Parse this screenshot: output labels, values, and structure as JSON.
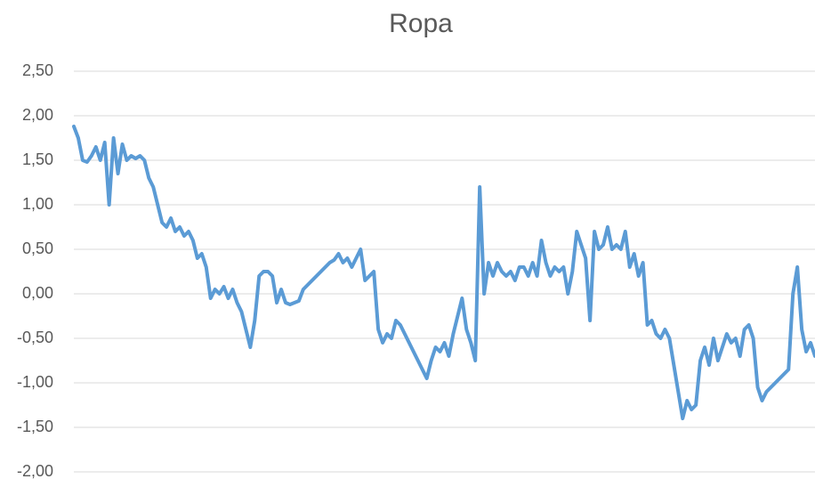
{
  "chart_data": {
    "type": "line",
    "title": "Ropa",
    "series": [
      {
        "color": "#5b9bd5",
        "values": [
          1.88,
          1.75,
          1.5,
          1.48,
          1.55,
          1.65,
          1.5,
          1.7,
          1.0,
          1.75,
          1.35,
          1.68,
          1.5,
          1.55,
          1.52,
          1.55,
          1.5,
          1.3,
          1.2,
          1.0,
          0.8,
          0.75,
          0.85,
          0.7,
          0.75,
          0.65,
          0.7,
          0.6,
          0.4,
          0.45,
          0.3,
          -0.05,
          0.05,
          0.0,
          0.08,
          -0.05,
          0.05,
          -0.1,
          -0.2,
          -0.4,
          -0.6,
          -0.3,
          0.2,
          0.25,
          0.25,
          0.2,
          -0.1,
          0.05,
          -0.1,
          -0.12,
          -0.1,
          -0.08,
          0.05,
          0.1,
          0.15,
          0.2,
          0.25,
          0.3,
          0.35,
          0.38,
          0.45,
          0.35,
          0.4,
          0.3,
          0.4,
          0.5,
          0.15,
          0.2,
          0.25,
          -0.4,
          -0.55,
          -0.45,
          -0.5,
          -0.3,
          -0.35,
          -0.45,
          -0.55,
          -0.65,
          -0.75,
          -0.85,
          -0.95,
          -0.75,
          -0.6,
          -0.65,
          -0.55,
          -0.7,
          -0.45,
          -0.25,
          -0.05,
          -0.4,
          -0.55,
          -0.75,
          1.2,
          0.0,
          0.35,
          0.2,
          0.35,
          0.25,
          0.2,
          0.25,
          0.15,
          0.3,
          0.3,
          0.2,
          0.35,
          0.2,
          0.6,
          0.35,
          0.2,
          0.3,
          0.25,
          0.3,
          0.0,
          0.25,
          0.7,
          0.55,
          0.4,
          -0.3,
          0.7,
          0.5,
          0.55,
          0.75,
          0.5,
          0.55,
          0.5,
          0.7,
          0.3,
          0.45,
          0.2,
          0.35,
          -0.35,
          -0.3,
          -0.45,
          -0.5,
          -0.4,
          -0.5,
          -0.8,
          -1.1,
          -1.4,
          -1.2,
          -1.3,
          -1.25,
          -0.75,
          -0.6,
          -0.8,
          -0.5,
          -0.75,
          -0.6,
          -0.45,
          -0.55,
          -0.5,
          -0.7,
          -0.4,
          -0.35,
          -0.5,
          -1.05,
          -1.2,
          -1.1,
          -1.05,
          -1.0,
          -0.95,
          -0.9,
          -0.85,
          0.0,
          0.3,
          -0.4,
          -0.65,
          -0.55,
          -0.7
        ]
      }
    ],
    "ylim": [
      -2,
      2.5
    ],
    "yticks": [
      {
        "value": -2,
        "label": "-2,00"
      },
      {
        "value": -1.5,
        "label": "-1,50"
      },
      {
        "value": -1,
        "label": "-1,00"
      },
      {
        "value": -0.5,
        "label": "-0,50"
      },
      {
        "value": 0,
        "label": "0,00"
      },
      {
        "value": 0.5,
        "label": "0,50"
      },
      {
        "value": 1,
        "label": "1,00"
      },
      {
        "value": 1.5,
        "label": "1,50"
      },
      {
        "value": 2,
        "label": "2,00"
      },
      {
        "value": 2.5,
        "label": "2,50"
      }
    ],
    "grid": true
  }
}
